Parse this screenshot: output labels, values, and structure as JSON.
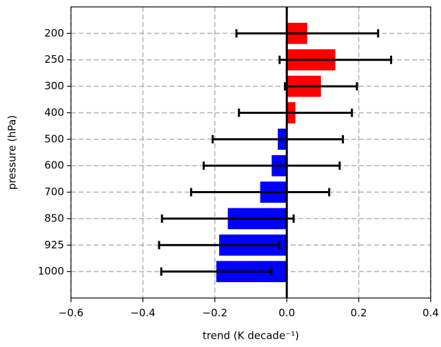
{
  "chart_data": {
    "type": "barh_errorbar",
    "categories": [
      "200",
      "250",
      "300",
      "400",
      "500",
      "600",
      "700",
      "850",
      "925",
      "1000"
    ],
    "values": [
      0.057,
      0.135,
      0.095,
      0.024,
      -0.025,
      -0.042,
      -0.074,
      -0.164,
      -0.188,
      -0.196
    ],
    "errors": [
      0.197,
      0.155,
      0.1,
      0.157,
      0.181,
      0.189,
      0.192,
      0.183,
      0.167,
      0.153
    ],
    "colors": [
      "#ff0000",
      "#ff0000",
      "#ff0000",
      "#ff0000",
      "#0000ff",
      "#0000ff",
      "#0000ff",
      "#0000ff",
      "#0000ff",
      "#0000ff"
    ],
    "error_color": "#000000",
    "xlim": [
      -0.6,
      0.4
    ],
    "xticks": [
      {
        "value": -0.6,
        "label": "−0.6"
      },
      {
        "value": -0.4,
        "label": "−0.4"
      },
      {
        "value": -0.2,
        "label": "−0.2"
      },
      {
        "value": 0,
        "label": "0.0"
      },
      0.2,
      0.4
    ],
    "xlabel": "trend (K decade⁻¹)",
    "ylabel": "pressure (hPa)",
    "grid": true
  }
}
